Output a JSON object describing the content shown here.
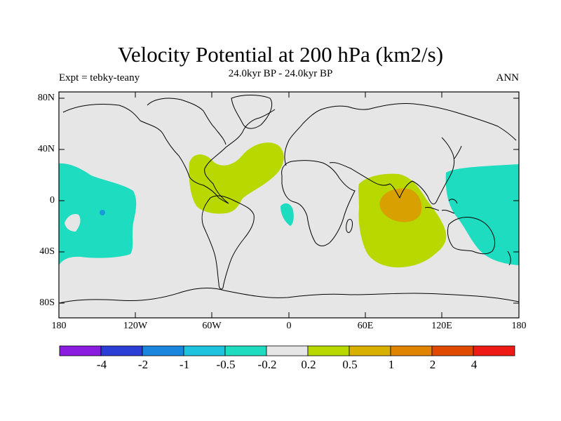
{
  "title": "Velocity Potential at 200 hPa (km2/s)",
  "subtitle": "24.0kyr BP - 24.0kyr BP",
  "left_label": "Expt = tebky-teany",
  "right_label": "ANN",
  "y_ticks": [
    "80N",
    "40N",
    "0",
    "40S",
    "80S"
  ],
  "x_ticks": [
    "180",
    "120W",
    "60W",
    "0",
    "60E",
    "120E",
    "180"
  ],
  "colorbar": {
    "colors": [
      "#8a1ddf",
      "#2b3fd6",
      "#1a86dd",
      "#1ec4df",
      "#1edcc0",
      "#e6e6e6",
      "#b8d800",
      "#d8b000",
      "#e08400",
      "#e04a00",
      "#ee1a16"
    ],
    "labels": [
      "-4",
      "-2",
      "-1",
      "-0.5",
      "-0.2",
      "0.2",
      "0.5",
      "1",
      "2",
      "4"
    ]
  },
  "colors": {
    "background_map": "#e6e6e6",
    "negative_region": "#1edcc0",
    "negative_core": "#1a9ad8",
    "positive_region": "#b8d800",
    "positive_core": "#d8a000"
  }
}
